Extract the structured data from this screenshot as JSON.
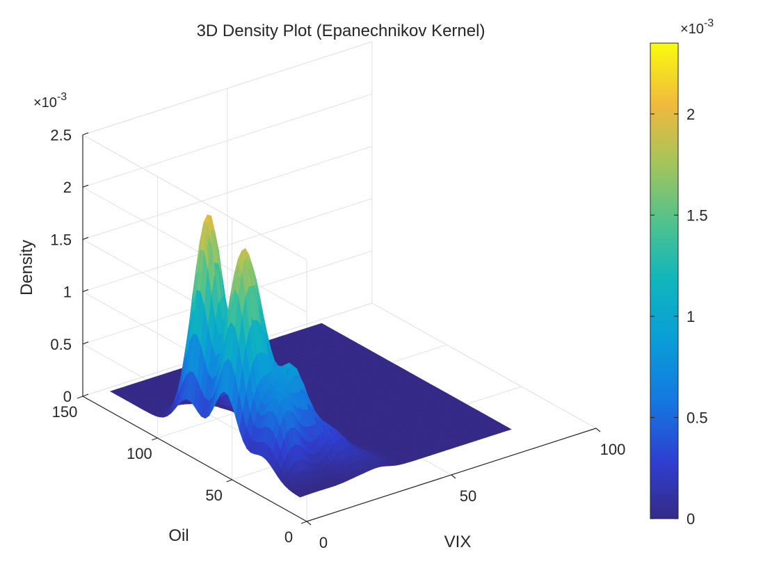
{
  "chart_data": {
    "type": "surface",
    "title": "3D Density Plot (Epanechnikov Kernel)",
    "xlabel": "VIX",
    "ylabel": "Oil",
    "zlabel": "Density",
    "x_ticks": [
      "0",
      "50",
      "100"
    ],
    "y_ticks": [
      "0",
      "50",
      "100",
      "150"
    ],
    "z_ticks": [
      "0",
      "0.5",
      "1",
      "1.5",
      "2",
      "2.5"
    ],
    "z_multiplier": "×10^-3",
    "z_multiplier_base": "×10",
    "z_multiplier_exp": "-3",
    "xlim": [
      0,
      100
    ],
    "ylim": [
      0,
      150
    ],
    "zlim": [
      0,
      0.0025
    ],
    "colorbar": {
      "colormap": "parula",
      "ticks": [
        "0",
        "0.5",
        "1",
        "1.5",
        "2"
      ],
      "range": [
        0,
        0.00235
      ],
      "multiplier_base": "×10",
      "multiplier_exp": "-3"
    },
    "surface": {
      "x_range": [
        8,
        81
      ],
      "y_range": [
        20,
        147
      ],
      "kernel_peaks": [
        {
          "vix": 15,
          "oil": 95,
          "density": 0.00205
        },
        {
          "vix": 13,
          "oil": 70,
          "density": 0.0015
        },
        {
          "vix": 19,
          "oil": 72,
          "density": 0.0011
        },
        {
          "vix": 22,
          "oil": 52,
          "density": 0.0008
        },
        {
          "vix": 14,
          "oil": 45,
          "density": 0.0007
        },
        {
          "vix": 28,
          "oil": 38,
          "density": 0.0003
        },
        {
          "vix": 35,
          "oil": 30,
          "density": 0.0001
        }
      ],
      "max_density": 0.00235
    }
  }
}
